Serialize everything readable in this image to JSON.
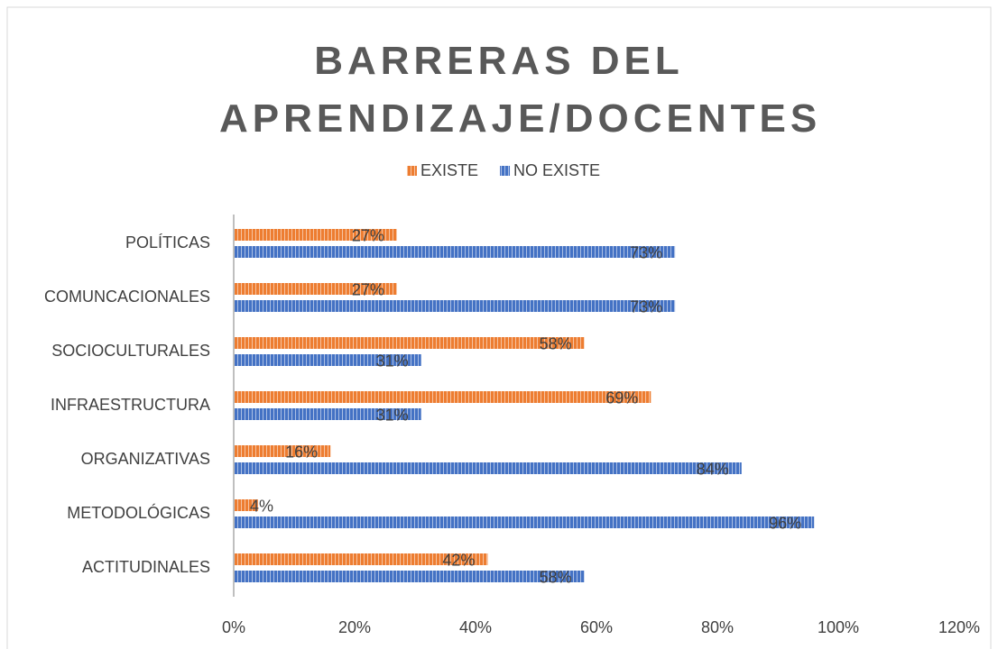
{
  "chart_data": {
    "type": "hbar",
    "title": "BARRERAS DEL APRENDIZAJE/DOCENTES",
    "categories": [
      "POLÍTICAS",
      "COMUNCACIONALES",
      "SOCIOCULTURALES",
      "INFRAESTRUCTURA",
      "ORGANIZATIVAS",
      "METODOLÓGICAS",
      "ACTITUDINALES"
    ],
    "series": [
      {
        "name": "EXISTE",
        "color": "#ed7d31",
        "values": [
          27,
          27,
          58,
          69,
          16,
          4,
          42
        ],
        "value_labels": [
          "27%",
          "27%",
          "58%",
          "69%",
          "16%",
          "4%",
          "42%"
        ]
      },
      {
        "name": "NO EXISTE",
        "color": "#4472c4",
        "values": [
          73,
          73,
          31,
          31,
          84,
          96,
          58
        ],
        "value_labels": [
          "73%",
          "73%",
          "31%",
          "31%",
          "84%",
          "96%",
          "58%"
        ]
      }
    ],
    "xlim": [
      0,
      120
    ],
    "xticks": [
      {
        "value": 0,
        "label": "0%"
      },
      {
        "value": 20,
        "label": "20%"
      },
      {
        "value": 40,
        "label": "40%"
      },
      {
        "value": 60,
        "label": "60%"
      },
      {
        "value": 80,
        "label": "80%"
      },
      {
        "value": 100,
        "label": "100%"
      },
      {
        "value": 120,
        "label": "120%"
      }
    ],
    "legend": "top"
  }
}
